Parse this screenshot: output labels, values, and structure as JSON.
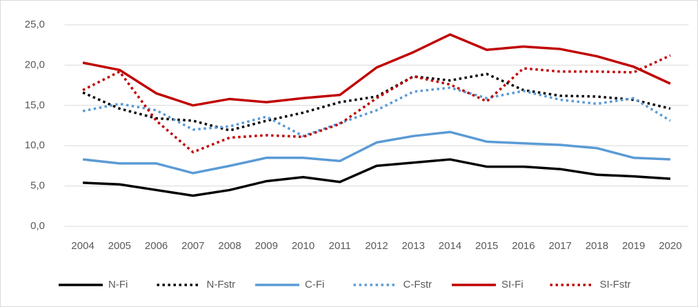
{
  "chart_data": {
    "type": "line",
    "categories": [
      "2004",
      "2005",
      "2006",
      "2007",
      "2008",
      "2009",
      "2010",
      "2011",
      "2012",
      "2013",
      "2014",
      "2015",
      "2016",
      "2017",
      "2018",
      "2019",
      "2020"
    ],
    "ylim": [
      0,
      25
    ],
    "yticks": [
      {
        "value": 0,
        "label": "0,0"
      },
      {
        "value": 5,
        "label": "5,0"
      },
      {
        "value": 10,
        "label": "10,0"
      },
      {
        "value": 15,
        "label": "15,0"
      },
      {
        "value": 20,
        "label": "20,0"
      },
      {
        "value": 25,
        "label": "25,0"
      }
    ],
    "grid": true,
    "legend": "bottom",
    "series": [
      {
        "name": "N-Fi",
        "color": "#000000",
        "style": "solid",
        "values": [
          5.4,
          5.2,
          4.5,
          3.8,
          4.5,
          5.6,
          6.1,
          5.5,
          7.5,
          7.9,
          8.3,
          7.4,
          7.4,
          7.1,
          6.4,
          6.2,
          5.9
        ]
      },
      {
        "name": "N-Fstr",
        "color": "#000000",
        "style": "dotted",
        "values": [
          16.6,
          14.6,
          13.4,
          13.1,
          11.9,
          13.1,
          14.1,
          15.4,
          16.1,
          18.6,
          18.1,
          18.9,
          16.9,
          16.2,
          16.1,
          15.7,
          14.6
        ]
      },
      {
        "name": "C-Fi",
        "color": "#5b9bd5",
        "style": "solid",
        "values": [
          8.3,
          7.8,
          7.8,
          6.6,
          7.5,
          8.5,
          8.5,
          8.1,
          10.4,
          11.2,
          11.7,
          10.5,
          10.3,
          10.1,
          9.7,
          8.5,
          8.3
        ]
      },
      {
        "name": "C-Fstr",
        "color": "#5b9bd5",
        "style": "dotted",
        "values": [
          14.3,
          15.2,
          14.4,
          12.0,
          12.4,
          13.6,
          11.2,
          12.8,
          14.4,
          16.7,
          17.2,
          15.9,
          16.8,
          15.7,
          15.2,
          15.9,
          13.1
        ]
      },
      {
        "name": "SI-Fi",
        "color": "#c00000",
        "style": "solid",
        "values": [
          20.3,
          19.4,
          16.5,
          15.0,
          15.8,
          15.4,
          15.9,
          16.3,
          19.7,
          21.6,
          23.8,
          21.9,
          22.3,
          22.0,
          21.1,
          19.8,
          17.7
        ]
      },
      {
        "name": "SI-Fstr",
        "color": "#c00000",
        "style": "dotted",
        "values": [
          16.9,
          19.2,
          13.1,
          9.2,
          11.0,
          11.3,
          11.1,
          12.7,
          15.9,
          18.6,
          17.6,
          15.5,
          19.6,
          19.2,
          19.2,
          19.1,
          21.2
        ]
      }
    ]
  }
}
